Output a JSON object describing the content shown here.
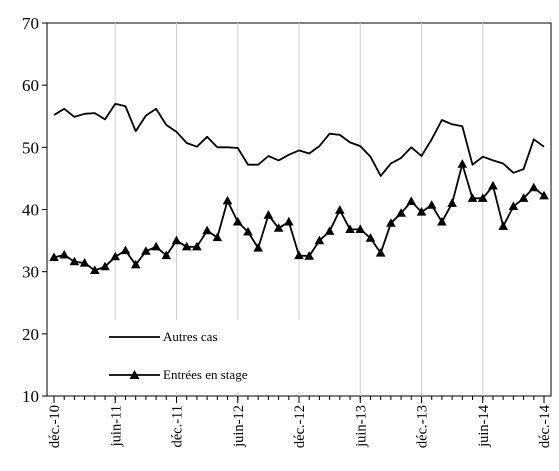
{
  "chart_data": {
    "type": "line",
    "title": "",
    "xlabel": "",
    "ylabel": "",
    "ylim": [
      10,
      70
    ],
    "yticks": [
      "10",
      "20",
      "30",
      "40",
      "50",
      "60",
      "70"
    ],
    "x_tick_labels": [
      "déc.-10",
      "juin-11",
      "déc.-11",
      "juin-12",
      "déc.-12",
      "juin-13",
      "déc.-13",
      "juin-14",
      "déc.-14"
    ],
    "x_start": "déc.-10",
    "x_end": "déc.-14",
    "grid": "vertical",
    "legend_position": "lower-left",
    "series": [
      {
        "name": "Autres cas",
        "marker": "none",
        "color": "#000000",
        "values": [
          55.2,
          56.2,
          54.9,
          55.4,
          55.5,
          54.5,
          57.0,
          56.6,
          52.6,
          55.1,
          56.2,
          53.6,
          52.5,
          50.7,
          50.1,
          51.7,
          50.0,
          50.0,
          49.9,
          47.2,
          47.2,
          48.6,
          47.9,
          48.8,
          49.5,
          49.0,
          50.2,
          52.2,
          52.0,
          50.8,
          50.2,
          48.5,
          45.4,
          47.4,
          48.3,
          50.0,
          48.6,
          51.3,
          54.4,
          53.7,
          53.4,
          47.2,
          48.5,
          47.9,
          47.4,
          45.9,
          46.5,
          51.3,
          50.1
        ]
      },
      {
        "name": "Entrées en stage",
        "marker": "triangle",
        "color": "#000000",
        "values": [
          32.3,
          32.7,
          31.6,
          31.4,
          30.2,
          30.8,
          32.4,
          33.4,
          31.1,
          33.3,
          34.0,
          32.6,
          35.0,
          34.0,
          34.0,
          36.6,
          35.5,
          41.4,
          38.0,
          36.4,
          33.8,
          39.1,
          37.0,
          38.0,
          32.6,
          32.5,
          35.0,
          36.5,
          39.9,
          36.8,
          36.8,
          35.4,
          33.0,
          37.8,
          39.4,
          41.3,
          39.6,
          40.7,
          38.0,
          41.0,
          47.3,
          41.8,
          41.8,
          43.8,
          37.3,
          40.5,
          41.8,
          43.5,
          42.2
        ]
      }
    ]
  }
}
